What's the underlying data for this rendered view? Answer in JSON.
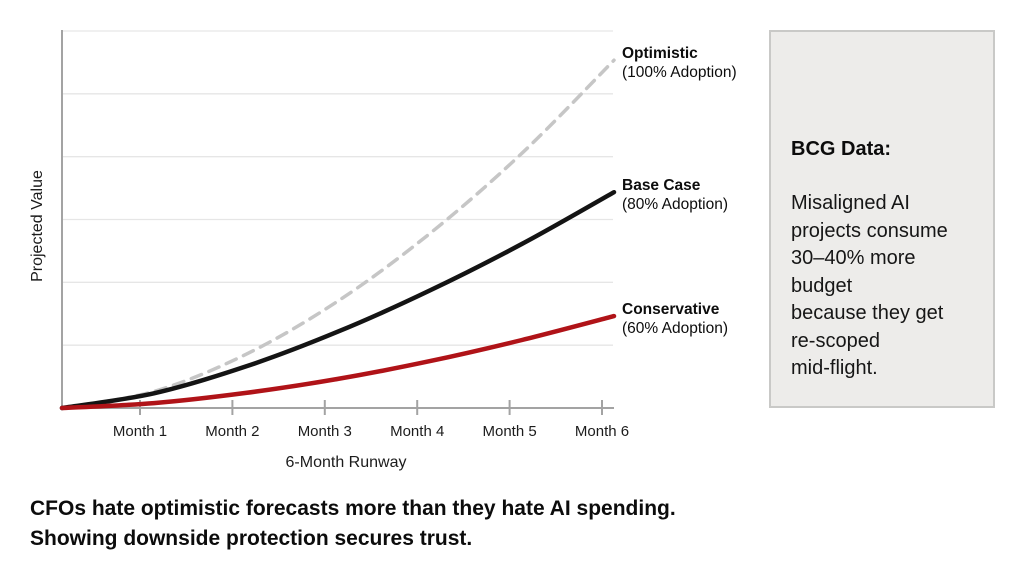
{
  "chart_data": {
    "type": "line",
    "title": "",
    "xlabel": "6-Month Runway",
    "ylabel": "Projected Value",
    "x_ticks": [
      "Month 1",
      "Month 2",
      "Month 3",
      "Month 4",
      "Month 5",
      "Month 6"
    ],
    "x_range_months": [
      0,
      6
    ],
    "ylim": [
      0,
      1
    ],
    "grid": "horizontal, 6 light lines",
    "legend_position": "labels at right end of each curve",
    "series": [
      {
        "name": "Optimistic",
        "sublabel": "(100% Adoption)",
        "style": "dashed",
        "color": "#c6c6c6",
        "months": [
          0,
          1,
          2,
          3,
          4,
          5,
          6
        ],
        "values": [
          0,
          0.044,
          0.142,
          0.283,
          0.462,
          0.674,
          0.92
        ]
      },
      {
        "name": "Base Case",
        "sublabel": "(80% Adoption)",
        "style": "solid",
        "color": "#141414",
        "months": [
          0,
          1,
          2,
          3,
          4,
          5,
          6
        ],
        "values": [
          0,
          0.039,
          0.11,
          0.202,
          0.311,
          0.434,
          0.571
        ]
      },
      {
        "name": "Conservative",
        "sublabel": "(60% Adoption)",
        "style": "solid",
        "color": "#b01318",
        "months": [
          0,
          1,
          2,
          3,
          4,
          5,
          6
        ],
        "values": [
          0,
          0.013,
          0.04,
          0.077,
          0.124,
          0.18,
          0.243
        ]
      }
    ]
  },
  "sidebar": {
    "heading": "BCG Data:",
    "body_lines": [
      "Misaligned AI",
      "projects consume",
      "30–40% more",
      "budget",
      "because they get",
      "re-scoped",
      "mid-flight."
    ]
  },
  "caption_lines": [
    "CFOs hate optimistic forecasts more than they hate AI spending.",
    "Showing downside protection secures trust."
  ],
  "colors": {
    "background": "#ffffff",
    "axis": "#a3a3a3",
    "grid": "#e6e6e6",
    "optimistic_dash": "#c6c6c6",
    "base_case_black": "#141414",
    "conservative_red": "#b01318",
    "box_background": "#edecea",
    "box_border": "#c9c9c7",
    "text": "#111111"
  }
}
